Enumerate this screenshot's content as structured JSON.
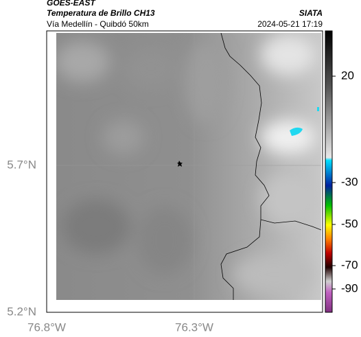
{
  "header": {
    "source": "GOES-EAST",
    "title": "Temperatura de Brillo CH13",
    "subtitle": "Vía Medellín - Quibdó 50km",
    "agency": "SIATA",
    "timestamp": "2024-05-21 17:19"
  },
  "axes": {
    "lat_labels": [
      "5.7°N",
      "5.2°N"
    ],
    "lon_labels": [
      "76.8°W",
      "76.3°W"
    ]
  },
  "colorbar": {
    "labels": [
      "20",
      "-30",
      "-50",
      "-70",
      "-90"
    ]
  }
}
